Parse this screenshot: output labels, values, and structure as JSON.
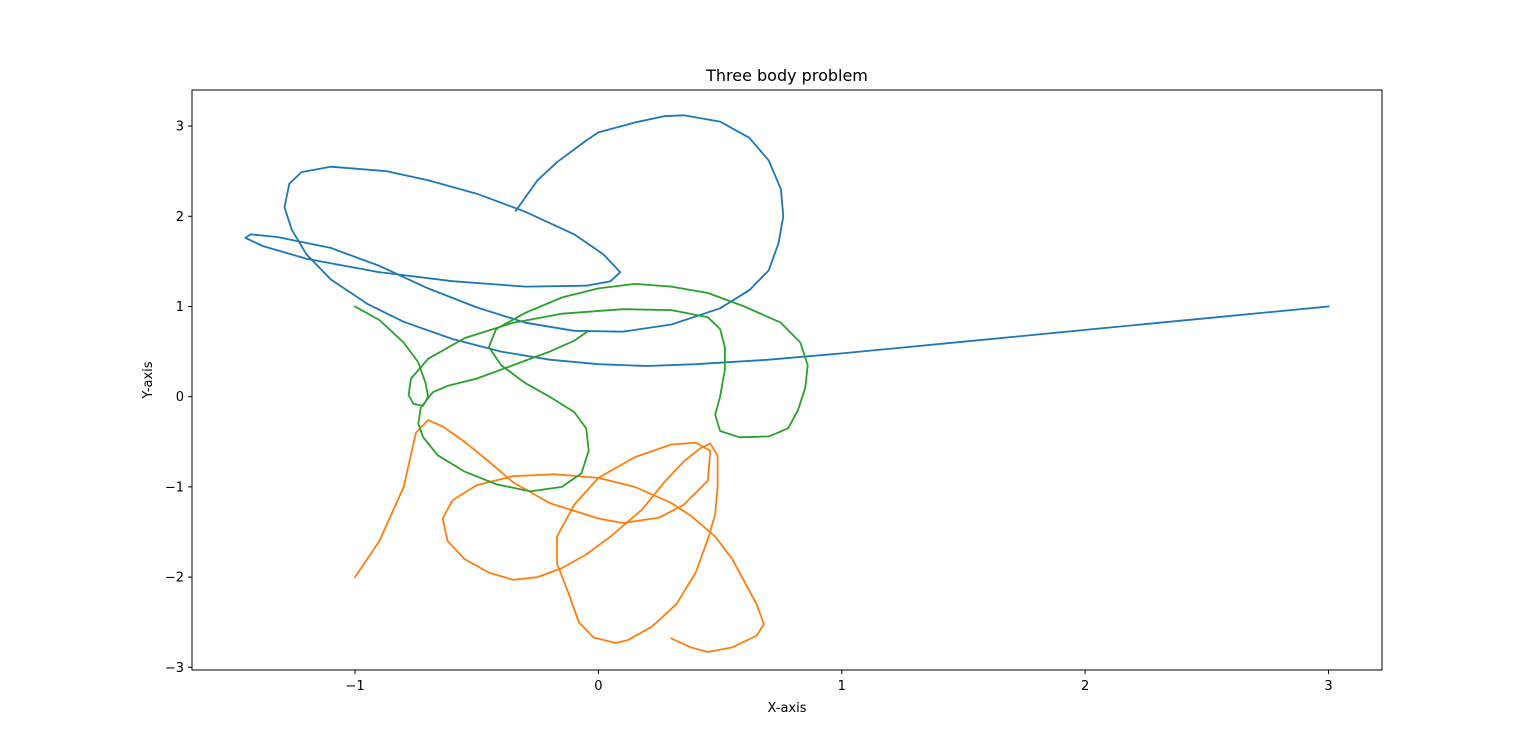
{
  "chart_data": {
    "type": "line",
    "title": "Three body problem",
    "xlabel": "X-axis",
    "ylabel": "Y-axis",
    "xlim": [
      -1.67,
      3.22
    ],
    "ylim": [
      -3.03,
      3.4
    ],
    "grid": false,
    "x_ticks": [
      -1,
      0,
      1,
      2,
      3
    ],
    "x_tick_labels": [
      "−1",
      "0",
      "1",
      "2",
      "3"
    ],
    "y_ticks": [
      -3,
      -2,
      -1,
      0,
      1,
      2,
      3
    ],
    "y_tick_labels": [
      "−3",
      "−2",
      "−1",
      "0",
      "1",
      "2",
      "3"
    ],
    "series": [
      {
        "color": "#1f77b4",
        "points": [
          [
            3.0,
            1.0
          ],
          [
            2.5,
            0.87
          ],
          [
            2.0,
            0.74
          ],
          [
            1.5,
            0.61
          ],
          [
            1.0,
            0.48
          ],
          [
            0.7,
            0.41
          ],
          [
            0.4,
            0.36
          ],
          [
            0.2,
            0.34
          ],
          [
            0.0,
            0.36
          ],
          [
            -0.2,
            0.41
          ],
          [
            -0.4,
            0.5
          ],
          [
            -0.6,
            0.64
          ],
          [
            -0.8,
            0.83
          ],
          [
            -0.95,
            1.03
          ],
          [
            -1.1,
            1.3
          ],
          [
            -1.2,
            1.58
          ],
          [
            -1.26,
            1.85
          ],
          [
            -1.29,
            2.1
          ],
          [
            -1.27,
            2.36
          ],
          [
            -1.22,
            2.49
          ],
          [
            -1.1,
            2.55
          ],
          [
            -0.87,
            2.5
          ],
          [
            -0.7,
            2.4
          ],
          [
            -0.5,
            2.25
          ],
          [
            -0.3,
            2.05
          ],
          [
            -0.1,
            1.8
          ],
          [
            0.02,
            1.58
          ],
          [
            0.09,
            1.38
          ],
          [
            0.05,
            1.28
          ],
          [
            -0.05,
            1.23
          ],
          [
            -0.3,
            1.22
          ],
          [
            -0.6,
            1.28
          ],
          [
            -0.9,
            1.38
          ],
          [
            -1.2,
            1.53
          ],
          [
            -1.38,
            1.67
          ],
          [
            -1.45,
            1.76
          ],
          [
            -1.43,
            1.8
          ],
          [
            -1.32,
            1.77
          ],
          [
            -1.1,
            1.65
          ],
          [
            -0.9,
            1.45
          ],
          [
            -0.7,
            1.2
          ],
          [
            -0.5,
            0.99
          ],
          [
            -0.3,
            0.82
          ],
          [
            -0.1,
            0.73
          ],
          [
            0.1,
            0.72
          ],
          [
            0.3,
            0.8
          ],
          [
            0.5,
            0.98
          ],
          [
            0.62,
            1.18
          ],
          [
            0.7,
            1.4
          ],
          [
            0.74,
            1.7
          ],
          [
            0.76,
            2.0
          ],
          [
            0.75,
            2.3
          ],
          [
            0.7,
            2.62
          ],
          [
            0.62,
            2.87
          ],
          [
            0.5,
            3.05
          ],
          [
            0.35,
            3.12
          ],
          [
            0.27,
            3.11
          ],
          [
            0.15,
            3.04
          ],
          [
            0.0,
            2.93
          ],
          [
            -0.05,
            2.84
          ],
          [
            -0.17,
            2.6
          ],
          [
            -0.25,
            2.4
          ],
          [
            -0.34,
            2.06
          ]
        ]
      },
      {
        "color": "#ff7f0e",
        "points": [
          [
            -1.0,
            -2.0
          ],
          [
            -0.9,
            -1.6
          ],
          [
            -0.8,
            -1.0
          ],
          [
            -0.75,
            -0.4
          ],
          [
            -0.7,
            -0.26
          ],
          [
            -0.64,
            -0.33
          ],
          [
            -0.55,
            -0.5
          ],
          [
            -0.45,
            -0.72
          ],
          [
            -0.35,
            -0.95
          ],
          [
            -0.2,
            -1.18
          ],
          [
            0.0,
            -1.35
          ],
          [
            0.1,
            -1.4
          ],
          [
            0.25,
            -1.34
          ],
          [
            0.35,
            -1.2
          ],
          [
            0.45,
            -0.93
          ],
          [
            0.46,
            -0.6
          ],
          [
            0.4,
            -0.51
          ],
          [
            0.3,
            -0.53
          ],
          [
            0.15,
            -0.67
          ],
          [
            0.0,
            -0.9
          ],
          [
            -0.1,
            -1.2
          ],
          [
            -0.17,
            -1.55
          ],
          [
            -0.17,
            -1.85
          ],
          [
            -0.12,
            -2.2
          ],
          [
            -0.08,
            -2.5
          ],
          [
            -0.02,
            -2.67
          ],
          [
            0.07,
            -2.73
          ],
          [
            0.12,
            -2.7
          ],
          [
            0.22,
            -2.55
          ],
          [
            0.32,
            -2.3
          ],
          [
            0.4,
            -1.95
          ],
          [
            0.45,
            -1.58
          ],
          [
            0.48,
            -1.3
          ],
          [
            0.49,
            -1.0
          ],
          [
            0.49,
            -0.65
          ],
          [
            0.46,
            -0.52
          ],
          [
            0.42,
            -0.57
          ],
          [
            0.35,
            -0.72
          ],
          [
            0.27,
            -0.95
          ],
          [
            0.18,
            -1.25
          ],
          [
            0.05,
            -1.55
          ],
          [
            -0.05,
            -1.75
          ],
          [
            -0.15,
            -1.9
          ],
          [
            -0.25,
            -2.0
          ],
          [
            -0.35,
            -2.03
          ],
          [
            -0.45,
            -1.95
          ],
          [
            -0.55,
            -1.8
          ],
          [
            -0.62,
            -1.6
          ],
          [
            -0.64,
            -1.35
          ],
          [
            -0.6,
            -1.15
          ],
          [
            -0.5,
            -0.98
          ],
          [
            -0.35,
            -0.88
          ],
          [
            -0.18,
            -0.86
          ],
          [
            0.0,
            -0.9
          ],
          [
            0.15,
            -1.0
          ],
          [
            0.3,
            -1.18
          ],
          [
            0.38,
            -1.32
          ],
          [
            0.48,
            -1.55
          ],
          [
            0.55,
            -1.8
          ],
          [
            0.6,
            -2.05
          ],
          [
            0.65,
            -2.3
          ],
          [
            0.68,
            -2.52
          ],
          [
            0.65,
            -2.65
          ],
          [
            0.55,
            -2.78
          ],
          [
            0.45,
            -2.83
          ],
          [
            0.38,
            -2.78
          ],
          [
            0.3,
            -2.68
          ]
        ]
      },
      {
        "color": "#2ca02c",
        "points": [
          [
            -1.0,
            1.0
          ],
          [
            -0.9,
            0.85
          ],
          [
            -0.8,
            0.6
          ],
          [
            -0.74,
            0.38
          ],
          [
            -0.71,
            0.15
          ],
          [
            -0.7,
            0.0
          ],
          [
            -0.72,
            -0.1
          ],
          [
            -0.76,
            -0.08
          ],
          [
            -0.78,
            0.02
          ],
          [
            -0.77,
            0.2
          ],
          [
            -0.7,
            0.42
          ],
          [
            -0.55,
            0.65
          ],
          [
            -0.35,
            0.82
          ],
          [
            -0.15,
            0.92
          ],
          [
            0.1,
            0.97
          ],
          [
            0.3,
            0.96
          ],
          [
            0.45,
            0.88
          ],
          [
            0.5,
            0.75
          ],
          [
            0.52,
            0.55
          ],
          [
            0.52,
            0.3
          ],
          [
            0.5,
            0.0
          ],
          [
            0.48,
            -0.2
          ],
          [
            0.5,
            -0.38
          ],
          [
            0.58,
            -0.45
          ],
          [
            0.7,
            -0.44
          ],
          [
            0.78,
            -0.35
          ],
          [
            0.82,
            -0.15
          ],
          [
            0.85,
            0.1
          ],
          [
            0.86,
            0.35
          ],
          [
            0.83,
            0.6
          ],
          [
            0.75,
            0.82
          ],
          [
            0.6,
            1.0
          ],
          [
            0.45,
            1.15
          ],
          [
            0.3,
            1.22
          ],
          [
            0.15,
            1.25
          ],
          [
            0.0,
            1.2
          ],
          [
            -0.15,
            1.1
          ],
          [
            -0.3,
            0.93
          ],
          [
            -0.42,
            0.75
          ],
          [
            -0.45,
            0.55
          ],
          [
            -0.4,
            0.35
          ],
          [
            -0.3,
            0.15
          ],
          [
            -0.2,
            0.0
          ],
          [
            -0.1,
            -0.17
          ],
          [
            -0.05,
            -0.35
          ],
          [
            -0.04,
            -0.6
          ],
          [
            -0.07,
            -0.85
          ],
          [
            -0.15,
            -1.0
          ],
          [
            -0.28,
            -1.05
          ],
          [
            -0.42,
            -0.97
          ],
          [
            -0.55,
            -0.83
          ],
          [
            -0.66,
            -0.65
          ],
          [
            -0.72,
            -0.45
          ],
          [
            -0.74,
            -0.3
          ],
          [
            -0.73,
            -0.12
          ],
          [
            -0.68,
            0.05
          ],
          [
            -0.62,
            0.12
          ],
          [
            -0.5,
            0.2
          ],
          [
            -0.35,
            0.35
          ],
          [
            -0.2,
            0.5
          ],
          [
            -0.1,
            0.62
          ],
          [
            -0.04,
            0.73
          ]
        ]
      }
    ]
  }
}
